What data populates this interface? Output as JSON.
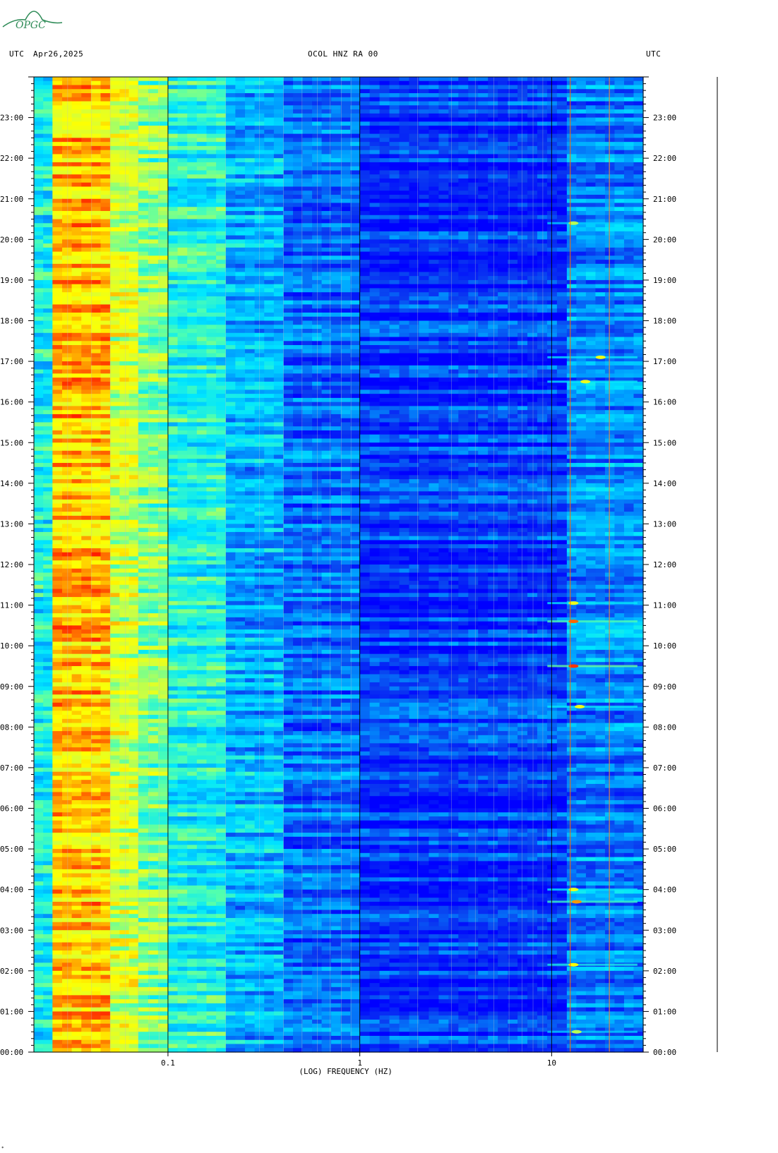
{
  "logo": {
    "text": "OPGC",
    "color": "#2e8b57"
  },
  "header": {
    "left_utc": "UTC",
    "date": "Apr26,2025",
    "station": "OCOL HNZ RA 00",
    "right_utc": "UTC"
  },
  "footer_mark": "*",
  "chart_data": {
    "type": "heatmap",
    "title": "OCOL HNZ RA 00",
    "xlabel": "(LOG) FREQUENCY (HZ)",
    "ylabel": "UTC",
    "x_scale": "log",
    "xlim": [
      0.02,
      30
    ],
    "x_ticks": [
      {
        "value": 0.1,
        "label": "0.1"
      },
      {
        "value": 1,
        "label": "1"
      },
      {
        "value": 10,
        "label": "10"
      }
    ],
    "ylim_hours": [
      0,
      24
    ],
    "y_ticks_left": [
      "00:00",
      "01:00",
      "02:00",
      "03:00",
      "04:00",
      "05:00",
      "06:00",
      "07:00",
      "08:00",
      "09:00",
      "10:00",
      "11:00",
      "12:00",
      "13:00",
      "14:00",
      "15:00",
      "16:00",
      "17:00",
      "18:00",
      "19:00",
      "20:00",
      "21:00",
      "22:00",
      "23:00"
    ],
    "y_ticks_right": [
      "00:00",
      "01:00",
      "02:00",
      "03:00",
      "04:00",
      "05:00",
      "06:00",
      "07:00",
      "08:00",
      "09:00",
      "10:00",
      "11:00",
      "12:00",
      "13:00",
      "14:00",
      "15:00",
      "16:00",
      "17:00",
      "18:00",
      "19:00",
      "20:00",
      "21:00",
      "22:00",
      "23:00"
    ],
    "colormap": [
      "#0000ff",
      "#0a3cf0",
      "#00a0ff",
      "#00e6ff",
      "#50ffb0",
      "#d2ff3c",
      "#ffff00",
      "#ff8000",
      "#ff0000"
    ],
    "band_energy": [
      {
        "f_range": [
          0.02,
          0.025
        ],
        "level": 0.4
      },
      {
        "f_range": [
          0.025,
          0.05
        ],
        "level": 0.8
      },
      {
        "f_range": [
          0.05,
          0.07
        ],
        "level": 0.65
      },
      {
        "f_range": [
          0.07,
          0.1
        ],
        "level": 0.55
      },
      {
        "f_range": [
          0.1,
          0.2
        ],
        "level": 0.42
      },
      {
        "f_range": [
          0.2,
          0.4
        ],
        "level": 0.3
      },
      {
        "f_range": [
          0.4,
          1
        ],
        "level": 0.18
      },
      {
        "f_range": [
          1,
          12
        ],
        "level": 0.1
      },
      {
        "f_range": [
          12,
          30
        ],
        "level": 0.22
      }
    ],
    "events": [
      {
        "time_h": 0.5,
        "freq_hz": 13.5,
        "level": 0.6
      },
      {
        "time_h": 2.15,
        "freq_hz": 13.0,
        "level": 0.75
      },
      {
        "time_h": 3.7,
        "freq_hz": 13.5,
        "level": 0.85
      },
      {
        "time_h": 4.0,
        "freq_hz": 13.0,
        "level": 0.7
      },
      {
        "time_h": 8.5,
        "freq_hz": 14.0,
        "level": 0.7
      },
      {
        "time_h": 9.5,
        "freq_hz": 13.0,
        "level": 0.95
      },
      {
        "time_h": 10.6,
        "freq_hz": 13.0,
        "level": 0.9
      },
      {
        "time_h": 11.05,
        "freq_hz": 13.0,
        "level": 0.7
      },
      {
        "time_h": 16.5,
        "freq_hz": 15.0,
        "level": 0.7
      },
      {
        "time_h": 17.1,
        "freq_hz": 18.0,
        "level": 0.7
      },
      {
        "time_h": 20.4,
        "freq_hz": 13.0,
        "level": 0.6
      }
    ],
    "lines_hz": [
      12.5,
      20.0
    ],
    "grid": true
  }
}
